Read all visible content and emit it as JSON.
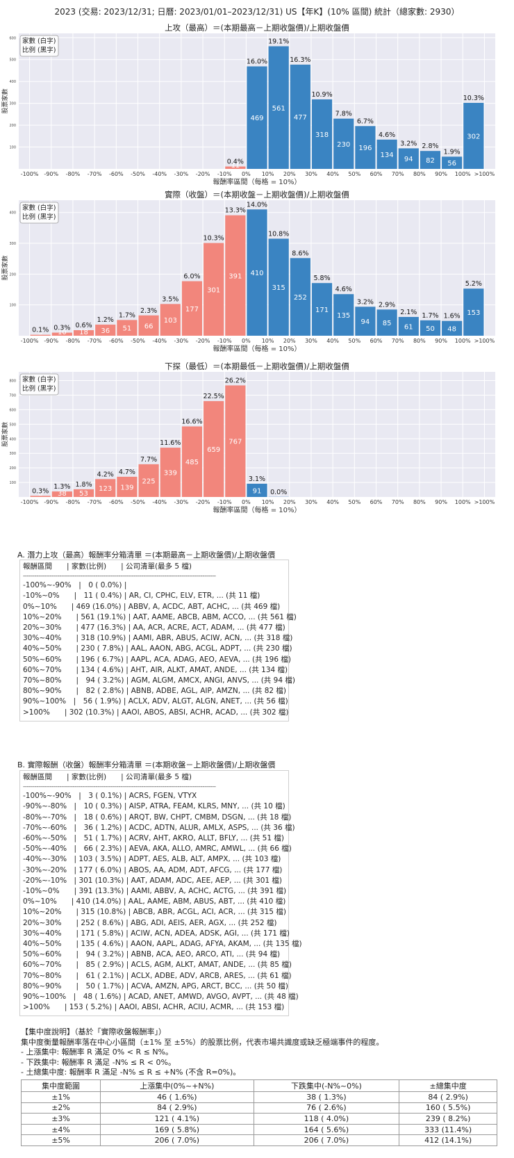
{
  "header": {
    "title": "2023 (交易: 2023/12/31; 日曆: 2023/01/01–2023/12/31) US【年K】(10% 區間) 統計（總家數: 2930）"
  },
  "legend_lines": [
    "家數 (白字)",
    "比例 (黑字)"
  ],
  "chart_data": [
    {
      "type": "bar",
      "title": "上攻（最高）＝(本期最高－上期收盤價)/上期收盤價",
      "xlabel": "報酬率區間（每格 = 10%）",
      "ylabel": "股票家數",
      "ylim": [
        0,
        620
      ],
      "yticks": [
        100,
        200,
        300,
        400,
        500,
        600
      ],
      "xticklabels": [
        "-100%",
        "-90%",
        "-80%",
        "-70%",
        "-60%",
        "-50%",
        "-40%",
        "-30%",
        "-20%",
        "-10%",
        "0%",
        "10%",
        "20%",
        "30%",
        "40%",
        "50%",
        "60%",
        "70%",
        "80%",
        "90%",
        "100%",
        ">100%"
      ],
      "categories": [
        "-100%~-90%",
        "-90%~-80%",
        "-80%~-70%",
        "-70%~-60%",
        "-60%~-50%",
        "-50%~-40%",
        "-40%~-30%",
        "-30%~-20%",
        "-20%~-10%",
        "-10%~0%",
        "0%~10%",
        "10%~20%",
        "20%~30%",
        "30%~40%",
        "40%~50%",
        "50%~60%",
        "60%~70%",
        "70%~80%",
        "80%~90%",
        "90%~100%",
        ">100%"
      ],
      "counts": [
        0,
        0,
        0,
        0,
        0,
        0,
        0,
        0,
        0,
        11,
        469,
        561,
        477,
        318,
        230,
        196,
        134,
        94,
        82,
        56,
        302
      ],
      "percents": [
        "",
        "",
        "",
        "",
        "",
        "",
        "",
        "",
        "",
        "0.4%",
        "16.0%",
        "19.1%",
        "16.3%",
        "10.9%",
        "7.8%",
        "6.7%",
        "4.6%",
        "3.2%",
        "2.8%",
        "1.9%",
        "10.3%"
      ]
    },
    {
      "type": "bar",
      "title": "實際（收盤）＝(本期收盤－上期收盤價)/上期收盤價",
      "xlabel": "報酬率區間（每格 = 10%）",
      "ylabel": "股票家數",
      "ylim": [
        0,
        440
      ],
      "yticks": [
        100,
        200,
        300,
        400
      ],
      "xticklabels": [
        "-100%",
        "-90%",
        "-80%",
        "-70%",
        "-60%",
        "-50%",
        "-40%",
        "-30%",
        "-20%",
        "-10%",
        "0%",
        "10%",
        "20%",
        "30%",
        "40%",
        "50%",
        "60%",
        "70%",
        "80%",
        "90%",
        "100%",
        ">100%"
      ],
      "categories": [
        "-100%~-90%",
        "-90%~-80%",
        "-80%~-70%",
        "-70%~-60%",
        "-60%~-50%",
        "-50%~-40%",
        "-40%~-30%",
        "-30%~-20%",
        "-20%~-10%",
        "-10%~0%",
        "0%~10%",
        "10%~20%",
        "20%~30%",
        "30%~40%",
        "40%~50%",
        "50%~60%",
        "60%~70%",
        "70%~80%",
        "80%~90%",
        "90%~100%",
        ">100%"
      ],
      "counts": [
        3,
        10,
        18,
        36,
        51,
        66,
        103,
        177,
        301,
        391,
        410,
        315,
        252,
        171,
        135,
        94,
        85,
        61,
        50,
        48,
        153
      ],
      "percents": [
        "0.1%",
        "0.3%",
        "0.6%",
        "1.2%",
        "1.7%",
        "2.3%",
        "3.5%",
        "6.0%",
        "10.3%",
        "13.3%",
        "14.0%",
        "10.8%",
        "8.6%",
        "5.8%",
        "4.6%",
        "3.2%",
        "2.9%",
        "2.1%",
        "1.7%",
        "1.6%",
        "5.2%"
      ]
    },
    {
      "type": "bar",
      "title": "下探（最低）＝(本期最低－上期收盤價)/上期收盤價",
      "xlabel": "報酬率區間（每格 = 10%）",
      "ylabel": "股票家數",
      "ylim": [
        0,
        860
      ],
      "yticks": [
        100,
        200,
        300,
        400,
        500,
        600,
        700,
        800
      ],
      "xticklabels": [
        "-100%",
        "-90%",
        "-80%",
        "-70%",
        "-60%",
        "-50%",
        "-40%",
        "-30%",
        "-20%",
        "-10%",
        "0%",
        "10%",
        "20%",
        "30%",
        "40%",
        "50%",
        "60%",
        "70%",
        "80%",
        "90%",
        "100%",
        ">100%"
      ],
      "categories": [
        "-100%~-90%",
        "-90%~-80%",
        "-80%~-70%",
        "-70%~-60%",
        "-60%~-50%",
        "-50%~-40%",
        "-40%~-30%",
        "-30%~-20%",
        "-20%~-10%",
        "-10%~0%",
        "0%~10%",
        "10%~20%",
        "20%~30%",
        "30%~40%",
        "40%~50%",
        "50%~60%",
        "60%~70%",
        "70%~80%",
        "80%~90%",
        "90%~100%",
        ">100%"
      ],
      "counts": [
        8,
        38,
        53,
        123,
        139,
        225,
        339,
        485,
        659,
        767,
        91,
        1,
        0,
        0,
        0,
        0,
        0,
        0,
        0,
        0,
        0
      ],
      "percents": [
        "0.3%",
        "1.3%",
        "1.8%",
        "4.2%",
        "4.7%",
        "7.7%",
        "11.6%",
        "16.6%",
        "22.5%",
        "26.2%",
        "3.1%",
        "0.0%",
        "",
        "",
        "",
        "",
        "",
        "",
        "",
        "",
        ""
      ]
    }
  ],
  "colors": {
    "positive": "#3a84c2",
    "negative": "#f2867c",
    "panel": "#e9e9f2",
    "grid": "#ffffff"
  },
  "table_a": {
    "title": "A. 潛力上攻（最高）報酬率分箱清單 ＝(本期最高－上期收盤價)/上期收盤價",
    "header": "報酬區間　　| 家數(比例)　　| 公司清單(最多 5 檔)",
    "separator": "-----------------------------------------------------------------------------------------------------",
    "rows": [
      "-100%~-90%　|　0 ( 0.0%) |",
      "-10%~0%　　|　11 ( 0.4%) | AR, CI, CPHC, ELV, ETR, ... (共 11 檔)",
      "0%~10%　　| 469 (16.0%) | ABBV, A, ACDC, ABT, ACHC, ... (共 469 檔)",
      "10%~20%　　| 561 (19.1%) | AAT, AAME, ABCB, ABM, ACCO, ... (共 561 檔)",
      "20%~30%　　| 477 (16.3%) | AA, ACR, ACRE, ACT, ADAM, ... (共 477 檔)",
      "30%~40%　　| 318 (10.9%) | AAMI, ABR, ABUS, ACIW, ACN, ... (共 318 檔)",
      "40%~50%　　| 230 ( 7.8%) | AAL, AAON, ABG, ACGL, ADPT, ... (共 230 檔)",
      "50%~60%　　| 196 ( 6.7%) | AAPL, ACA, ADAG, AEO, AEVA, ... (共 196 檔)",
      "60%~70%　　| 134 ( 4.6%) | AHT, AIR, ALKT, AMAT, ANDE, ... (共 134 檔)",
      "70%~80%　　|　94 ( 3.2%) | AGM, ALGM, AMCX, ANGI, ANVS, ... (共 94 檔)",
      "80%~90%　　|　82 ( 2.8%) | ABNB, ADBE, AGL, AIP, AMZN, ... (共 82 檔)",
      "90%~100%　|　56 ( 1.9%) | ACLX, ADV, ALGT, ALGN, ANET, ... (共 56 檔)",
      ">100%　　| 302 (10.3%) | AAOI, ABOS, ABSI, ACHR, ACAD, ... (共 302 檔)"
    ]
  },
  "table_b": {
    "title": "B. 實際報酬（收盤）報酬率分箱清單 ＝(本期收盤－上期收盤價)/上期收盤價",
    "header": "報酬區間　　| 家數(比例)　　| 公司清單(最多 5 檔)",
    "separator": "-----------------------------------------------------------------------------------------------------",
    "rows": [
      "-100%~-90%　|　3 ( 0.1%) | ACRS, FGEN, VTYX",
      "-90%~-80%　|　10 ( 0.3%) | AISP, ATRA, FEAM, KLRS, MNY, ... (共 10 檔)",
      "-80%~-70%　|　18 ( 0.6%) | ARQT, BW, CHPT, CMBM, DSGN, ... (共 18 檔)",
      "-70%~-60%　|　36 ( 1.2%) | ACDC, ADTN, ALUR, AMLX, ASPS, ... (共 36 檔)",
      "-60%~-50%　|　51 ( 1.7%) | ACRV, AHT, AKRO, ALLT, BFLY, ... (共 51 檔)",
      "-50%~-40%　|　66 ( 2.3%) | AEVA, AKA, ALLO, AMRC, AMWL, ... (共 66 檔)",
      "-40%~-30%　| 103 ( 3.5%) | ADPT, AES, ALB, ALT, AMPX, ... (共 103 檔)",
      "-30%~-20%　| 177 ( 6.0%) | ABOS, AA, ADM, ADT, AFCG, ... (共 177 檔)",
      "-20%~-10%　| 301 (10.3%) | AAT, ADAM, ADC, AEE, AEP, ... (共 301 檔)",
      "-10%~0%　　| 391 (13.3%) | AAMI, ABBV, A, ACHC, ACTG, ... (共 391 檔)",
      "0%~10%　　| 410 (14.0%) | AAL, AAME, ABM, ABUS, ABT, ... (共 410 檔)",
      "10%~20%　　| 315 (10.8%) | ABCB, ABR, ACGL, ACI, ACR, ... (共 315 檔)",
      "20%~30%　　| 252 ( 8.6%) | ABG, ADI, AEIS, AER, AGX, ... (共 252 檔)",
      "30%~40%　　| 171 ( 5.8%) | ACIW, ACN, ADEA, ADSK, AGI, ... (共 171 檔)",
      "40%~50%　　| 135 ( 4.6%) | AAON, AAPL, ADAG, AFYA, AKAM, ... (共 135 檔)",
      "50%~60%　　|　94 ( 3.2%) | ABNB, ACA, AEO, ARCO, ATI, ... (共 94 檔)",
      "60%~70%　　|　85 ( 2.9%) | ACLS, AGM, ALKT, AMAT, ANDE, ... (共 85 檔)",
      "70%~80%　　|　61 ( 2.1%) | ACLX, ADBE, ADV, ARCB, ARES, ... (共 61 檔)",
      "80%~90%　　|　50 ( 1.7%) | ACVA, AMZN, APG, ARCT, BCC, ... (共 50 檔)",
      "90%~100%　|　48 ( 1.6%) | ACAD, ANET, AMWD, AVGO, AVPT, ... (共 48 檔)",
      ">100%　　| 153 ( 5.2%) | AAOI, ABSI, ACHR, ACIU, ACMR, ... (共 153 檔)"
    ]
  },
  "concentration": {
    "lines": [
      "【集中度說明】（基於「實際收盤報酬率」）",
      "集中度衡量報酬率落在中心小區間（±1% 至 ±5%）的股票比例，代表市場共識度或缺乏極端事件的程度。",
      " - 上漲集中: 報酬率 R 滿足 0% < R ≤ N%。",
      " - 下跌集中: 報酬率 R 滿足 -N% ≤ R < 0%。",
      " - 土總集中度: 報酬率 R 滿足 -N% ≤ R ≤ +N% (不含 R=0%)。"
    ],
    "columns": [
      "集中度範圍",
      "上漲集中(0%~+N%)",
      "下跌集中(-N%~0%)",
      "±總集中度"
    ],
    "rows": [
      [
        "±1%",
        "46 ( 1.6%)",
        "38 ( 1.3%)",
        "84 ( 2.9%)"
      ],
      [
        "±2%",
        "84 ( 2.9%)",
        "76 ( 2.6%)",
        "160 ( 5.5%)"
      ],
      [
        "±3%",
        "121 ( 4.1%)",
        "118 ( 4.0%)",
        "239 ( 8.2%)"
      ],
      [
        "±4%",
        "169 ( 5.8%)",
        "164 ( 5.6%)",
        "333 (11.4%)"
      ],
      [
        "±5%",
        "206 ( 7.0%)",
        "206 ( 7.0%)",
        "412 (14.1%)"
      ]
    ]
  }
}
